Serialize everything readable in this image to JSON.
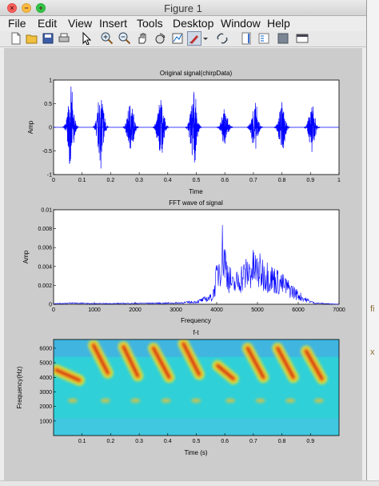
{
  "window": {
    "title": "Figure 1"
  },
  "menu": [
    "File",
    "Edit",
    "View",
    "Insert",
    "Tools",
    "Desktop",
    "Window",
    "Help"
  ],
  "toolbar": [
    "new-figure-icon",
    "open-icon",
    "save-icon",
    "print-icon",
    "pointer-icon",
    "zoom-in-icon",
    "zoom-out-icon",
    "pan-icon",
    "rotate-icon",
    "data-cursor-icon",
    "brush-icon",
    "brush-dropdown-icon",
    "link-icon",
    "colorbar-icon",
    "legend-icon",
    "hide-tools-icon",
    "dock-icon"
  ],
  "background_side_text": [
    "fi",
    "x"
  ],
  "chart_data": [
    {
      "type": "line",
      "title": "Original signal(chirpData)",
      "xlabel": "Time",
      "ylabel": "Amp",
      "xlim": [
        0,
        1
      ],
      "ylim": [
        -1,
        1
      ],
      "xticks": [
        "0",
        "0.1",
        "0.2",
        "0.3",
        "0.4",
        "0.5",
        "0.6",
        "0.7",
        "0.8",
        "0.9",
        "1"
      ],
      "yticks": [
        "-1",
        "-0.5",
        "0",
        "0.5",
        "1"
      ],
      "color": "#0000ff",
      "bursts": [
        {
          "center": 0.06,
          "amplitude": 0.9
        },
        {
          "center": 0.165,
          "amplitude": 0.95
        },
        {
          "center": 0.27,
          "amplitude": 0.65
        },
        {
          "center": 0.375,
          "amplitude": 0.75
        },
        {
          "center": 0.49,
          "amplitude": 0.9
        },
        {
          "center": 0.6,
          "amplitude": 0.45
        },
        {
          "center": 0.705,
          "amplitude": 0.6
        },
        {
          "center": 0.8,
          "amplitude": 0.65
        },
        {
          "center": 0.905,
          "amplitude": 0.55
        }
      ]
    },
    {
      "type": "line",
      "title": "FFT wave of signal",
      "xlabel": "Frequency",
      "ylabel": "Amp",
      "xlim": [
        0,
        7000
      ],
      "ylim": [
        0,
        0.01
      ],
      "xticks": [
        "0",
        "1000",
        "2000",
        "3000",
        "4000",
        "5000",
        "6000",
        "7000"
      ],
      "yticks": [
        "0",
        "0.002",
        "0.004",
        "0.006",
        "0.008",
        "0.01"
      ],
      "color": "#0000ff",
      "envelope": [
        {
          "x": 0,
          "y": 0.0001
        },
        {
          "x": 500,
          "y": 0.0002
        },
        {
          "x": 1000,
          "y": 0.0001
        },
        {
          "x": 2000,
          "y": 0.00015
        },
        {
          "x": 3000,
          "y": 0.0002
        },
        {
          "x": 3500,
          "y": 0.0004
        },
        {
          "x": 3900,
          "y": 0.0012
        },
        {
          "x": 4000,
          "y": 0.0045
        },
        {
          "x": 4100,
          "y": 0.0075
        },
        {
          "x": 4150,
          "y": 0.0093
        },
        {
          "x": 4250,
          "y": 0.0055
        },
        {
          "x": 4400,
          "y": 0.003
        },
        {
          "x": 4600,
          "y": 0.0045
        },
        {
          "x": 4900,
          "y": 0.0059
        },
        {
          "x": 5200,
          "y": 0.005
        },
        {
          "x": 5500,
          "y": 0.0038
        },
        {
          "x": 5800,
          "y": 0.0025
        },
        {
          "x": 6000,
          "y": 0.0015
        },
        {
          "x": 6200,
          "y": 0.0007
        },
        {
          "x": 6400,
          "y": 0.0002
        },
        {
          "x": 7000,
          "y": 0.0
        }
      ]
    },
    {
      "type": "heatmap",
      "title": "f-t",
      "xlabel": "Time (s)",
      "ylabel": "Frequency(Hz)",
      "xlim": [
        0,
        1
      ],
      "ylim": [
        0,
        6600
      ],
      "xticks": [
        "0.1",
        "0.2",
        "0.3",
        "0.4",
        "0.5",
        "0.6",
        "0.7",
        "0.8",
        "0.9"
      ],
      "yticks": [
        "1000",
        "2000",
        "3000",
        "4000",
        "5000",
        "6000"
      ],
      "colormap": "jet",
      "strokes": [
        {
          "t0": 0.01,
          "f0": 4500,
          "t1": 0.09,
          "f1": 3800
        },
        {
          "t0": 0.14,
          "f0": 6200,
          "t1": 0.19,
          "f1": 4300
        },
        {
          "t0": 0.245,
          "f0": 6100,
          "t1": 0.295,
          "f1": 4100
        },
        {
          "t0": 0.35,
          "f0": 6000,
          "t1": 0.405,
          "f1": 4000
        },
        {
          "t0": 0.455,
          "f0": 6300,
          "t1": 0.51,
          "f1": 4200
        },
        {
          "t0": 0.575,
          "f0": 4800,
          "t1": 0.63,
          "f1": 3900
        },
        {
          "t0": 0.68,
          "f0": 6000,
          "t1": 0.735,
          "f1": 4000
        },
        {
          "t0": 0.785,
          "f0": 6000,
          "t1": 0.84,
          "f1": 4000
        },
        {
          "t0": 0.885,
          "f0": 5800,
          "t1": 0.94,
          "f1": 3900
        }
      ]
    }
  ]
}
